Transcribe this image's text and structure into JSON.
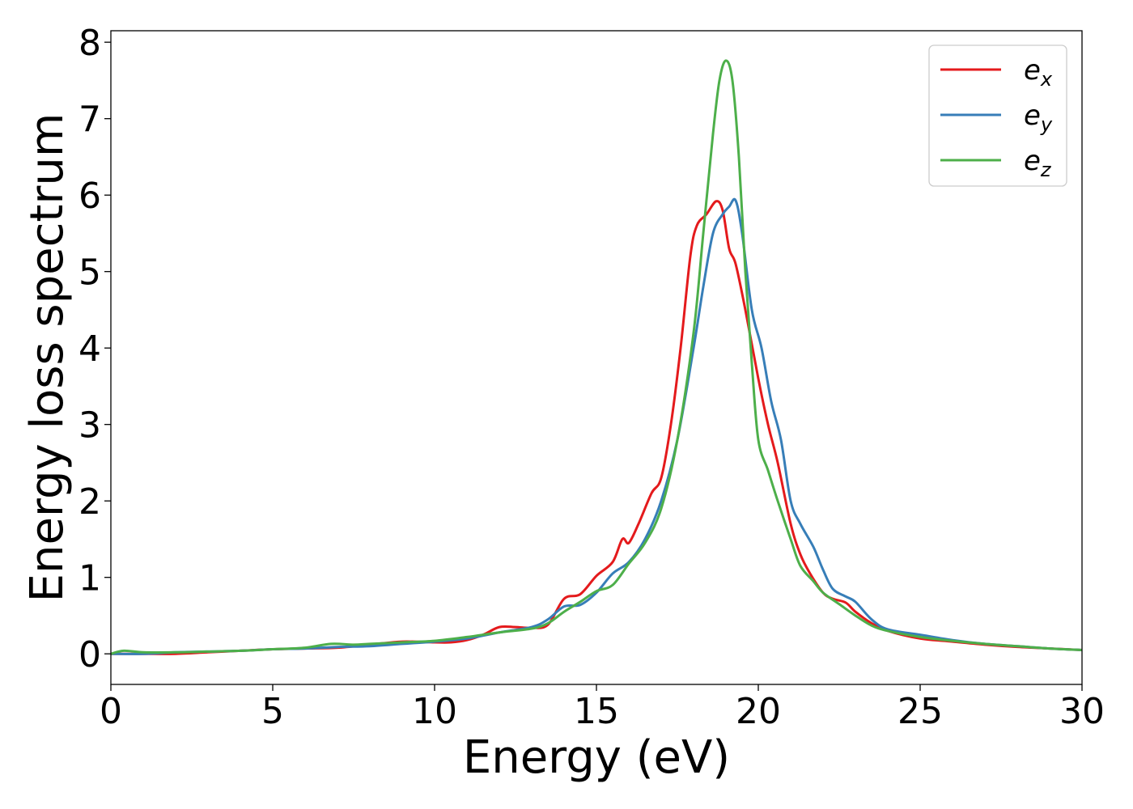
{
  "chart_data": {
    "type": "line",
    "xlabel": "Energy (eV)",
    "ylabel": "Energy loss spectrum",
    "xlim": [
      0,
      30
    ],
    "ylim": [
      -0.4,
      8.15
    ],
    "xticks": [
      "0",
      "5",
      "10",
      "15",
      "20",
      "25",
      "30"
    ],
    "yticks": [
      "0",
      "1",
      "2",
      "3",
      "4",
      "5",
      "6",
      "7",
      "8"
    ],
    "grid": false,
    "legend_position": "top-right",
    "series": [
      {
        "name": "e_x",
        "label_base": "e",
        "label_sub": "x",
        "color": "#e41a1c",
        "x": [
          0,
          1,
          2,
          3,
          4,
          5,
          6,
          7,
          8,
          9,
          10,
          10.5,
          11,
          11.5,
          12,
          12.5,
          13,
          13.5,
          14,
          14.5,
          15,
          15.5,
          15.8,
          16,
          16.3,
          16.7,
          17,
          17.3,
          17.6,
          17.9,
          18.1,
          18.4,
          18.7,
          18.9,
          19.1,
          19.3,
          19.6,
          20,
          20.3,
          20.6,
          21,
          21.3,
          21.6,
          22,
          22.3,
          22.7,
          23,
          23.5,
          24,
          25,
          26,
          27,
          28,
          29,
          30
        ],
        "y": [
          0,
          0,
          0,
          0.02,
          0.04,
          0.06,
          0.07,
          0.08,
          0.12,
          0.16,
          0.15,
          0.15,
          0.18,
          0.25,
          0.35,
          0.35,
          0.34,
          0.38,
          0.72,
          0.78,
          1.02,
          1.2,
          1.5,
          1.45,
          1.7,
          2.1,
          2.3,
          3.0,
          4.0,
          5.2,
          5.6,
          5.75,
          5.92,
          5.8,
          5.3,
          5.1,
          4.5,
          3.6,
          3.0,
          2.5,
          1.7,
          1.3,
          1.05,
          0.8,
          0.72,
          0.67,
          0.55,
          0.4,
          0.3,
          0.2,
          0.16,
          0.12,
          0.09,
          0.07,
          0.05
        ]
      },
      {
        "name": "e_y",
        "label_base": "e",
        "label_sub": "y",
        "color": "#377eb8",
        "x": [
          0,
          1,
          2,
          3,
          4,
          5,
          6,
          7,
          8,
          9,
          10,
          11,
          12,
          13,
          13.5,
          14,
          14.5,
          15,
          15.5,
          16,
          16.5,
          17,
          17.5,
          18,
          18.3,
          18.6,
          18.9,
          19.1,
          19.3,
          19.5,
          19.8,
          20.1,
          20.4,
          20.7,
          21,
          21.3,
          21.7,
          22,
          22.3,
          22.7,
          23,
          23.5,
          24,
          25,
          26,
          27,
          28,
          29,
          30
        ],
        "y": [
          0,
          0,
          0.02,
          0.03,
          0.04,
          0.06,
          0.07,
          0.09,
          0.1,
          0.13,
          0.16,
          0.2,
          0.28,
          0.35,
          0.45,
          0.62,
          0.64,
          0.8,
          1.05,
          1.2,
          1.5,
          2.0,
          2.8,
          4.0,
          4.8,
          5.5,
          5.75,
          5.85,
          5.93,
          5.5,
          4.5,
          4.0,
          3.3,
          2.8,
          2.0,
          1.7,
          1.4,
          1.1,
          0.85,
          0.75,
          0.68,
          0.45,
          0.32,
          0.25,
          0.18,
          0.13,
          0.1,
          0.07,
          0.05
        ]
      },
      {
        "name": "e_z",
        "label_base": "e",
        "label_sub": "z",
        "color": "#4daf4a",
        "x": [
          0,
          0.4,
          1,
          2,
          3,
          4,
          5,
          6,
          6.8,
          7.5,
          8,
          9,
          10,
          11,
          12,
          13,
          13.5,
          14,
          14.5,
          15,
          15.5,
          16,
          16.5,
          17,
          17.5,
          18,
          18.3,
          18.6,
          18.8,
          19,
          19.2,
          19.4,
          19.6,
          19.8,
          20,
          20.3,
          20.6,
          21,
          21.3,
          21.7,
          22,
          22.5,
          23,
          23.5,
          24,
          25,
          26,
          27,
          28,
          29,
          30
        ],
        "y": [
          0,
          0.04,
          0.02,
          0.02,
          0.03,
          0.04,
          0.06,
          0.08,
          0.13,
          0.12,
          0.13,
          0.15,
          0.17,
          0.22,
          0.28,
          0.33,
          0.4,
          0.55,
          0.68,
          0.82,
          0.9,
          1.18,
          1.45,
          1.9,
          2.8,
          4.2,
          5.5,
          6.8,
          7.5,
          7.76,
          7.5,
          6.5,
          5.0,
          3.8,
          2.8,
          2.4,
          2.0,
          1.5,
          1.15,
          0.95,
          0.8,
          0.65,
          0.5,
          0.37,
          0.3,
          0.22,
          0.17,
          0.13,
          0.1,
          0.07,
          0.05
        ]
      }
    ]
  }
}
